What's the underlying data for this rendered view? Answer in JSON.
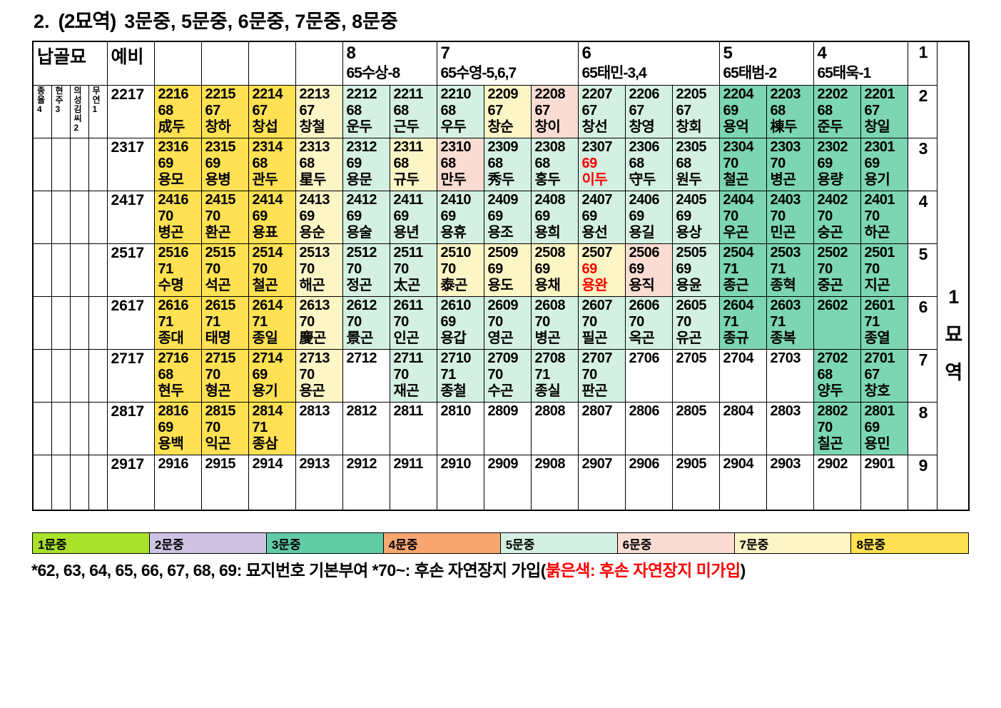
{
  "title": {
    "prefix": "2.",
    "area": "(2묘역)",
    "rest": "3문중, 5문중, 6문중, 7문중, 8문중"
  },
  "colors": {
    "y8": "#FFE153",
    "y7": "#FCF5C5",
    "m5": "#D4F0E3",
    "p6": "#FBDCD2",
    "g3": "#7CD6B3",
    "w": "#FFFFFF"
  },
  "table": {
    "header": {
      "nabgolmyo": "납골묘",
      "yebi": "예비",
      "blank_columns": 4,
      "groups": [
        {
          "num": "8",
          "label": "65수상-8",
          "span": 2
        },
        {
          "num": "7",
          "label": "65수영-5,6,7",
          "span": 3
        },
        {
          "num": "6",
          "label": "65태민-3,4",
          "span": 3
        },
        {
          "num": "5",
          "label": "65태범-2",
          "span": 2
        },
        {
          "num": "4",
          "label": "65태욱-1",
          "span": 2
        }
      ],
      "corner_row_label": "1"
    },
    "left_columns": [
      "종율4",
      "현주3",
      "의성김씨2",
      "무연1"
    ],
    "right_label": "1묘역",
    "rows": [
      {
        "reserve": "2217",
        "label": "2",
        "cells": [
          {
            "id": "2216",
            "sub": "68",
            "name": "成두",
            "f": "y8"
          },
          {
            "id": "2215",
            "sub": "67",
            "name": "창하",
            "f": "y8"
          },
          {
            "id": "2214",
            "sub": "67",
            "name": "창섭",
            "f": "y8"
          },
          {
            "id": "2213",
            "sub": "67",
            "name": "창철",
            "f": "y7"
          },
          {
            "id": "2212",
            "sub": "68",
            "name": "운두",
            "f": "m5"
          },
          {
            "id": "2211",
            "sub": "68",
            "name": "근두",
            "f": "m5"
          },
          {
            "id": "2210",
            "sub": "68",
            "name": "우두",
            "f": "m5"
          },
          {
            "id": "2209",
            "sub": "67",
            "name": "창순",
            "f": "y7"
          },
          {
            "id": "2208",
            "sub": "67",
            "name": "창이",
            "f": "p6"
          },
          {
            "id": "2207",
            "sub": "67",
            "name": "창선",
            "f": "m5"
          },
          {
            "id": "2206",
            "sub": "67",
            "name": "창영",
            "f": "m5"
          },
          {
            "id": "2205",
            "sub": "67",
            "name": "창회",
            "f": "m5"
          },
          {
            "id": "2204",
            "sub": "69",
            "name": "용억",
            "f": "g3"
          },
          {
            "id": "2203",
            "sub": "68",
            "name": "棟두",
            "f": "g3"
          },
          {
            "id": "2202",
            "sub": "68",
            "name": "준두",
            "f": "g3"
          },
          {
            "id": "2201",
            "sub": "67",
            "name": "창일",
            "f": "g3"
          }
        ]
      },
      {
        "reserve": "2317",
        "label": "3",
        "cells": [
          {
            "id": "2316",
            "sub": "69",
            "name": "용모",
            "f": "y8"
          },
          {
            "id": "2315",
            "sub": "69",
            "name": "용병",
            "f": "y8"
          },
          {
            "id": "2314",
            "sub": "68",
            "name": "관두",
            "f": "y8"
          },
          {
            "id": "2313",
            "sub": "68",
            "name": "星두",
            "f": "y7"
          },
          {
            "id": "2312",
            "sub": "69",
            "name": "용문",
            "f": "m5"
          },
          {
            "id": "2311",
            "sub": "68",
            "name": "규두",
            "f": "y7"
          },
          {
            "id": "2310",
            "sub": "68",
            "name": "만두",
            "f": "p6"
          },
          {
            "id": "2309",
            "sub": "68",
            "name": "秀두",
            "f": "m5"
          },
          {
            "id": "2308",
            "sub": "68",
            "name": "홍두",
            "f": "m5"
          },
          {
            "id": "2307",
            "sub": "69",
            "name": "이두",
            "f": "m5",
            "red": true
          },
          {
            "id": "2306",
            "sub": "68",
            "name": "守두",
            "f": "m5"
          },
          {
            "id": "2305",
            "sub": "68",
            "name": "원두",
            "f": "m5"
          },
          {
            "id": "2304",
            "sub": "70",
            "name": "철곤",
            "f": "g3"
          },
          {
            "id": "2303",
            "sub": "70",
            "name": "병곤",
            "f": "g3"
          },
          {
            "id": "2302",
            "sub": "69",
            "name": "용량",
            "f": "g3"
          },
          {
            "id": "2301",
            "sub": "69",
            "name": "용기",
            "f": "g3"
          }
        ]
      },
      {
        "reserve": "2417",
        "label": "4",
        "cells": [
          {
            "id": "2416",
            "sub": "70",
            "name": "병곤",
            "f": "y8"
          },
          {
            "id": "2415",
            "sub": "70",
            "name": "환곤",
            "f": "y8"
          },
          {
            "id": "2414",
            "sub": "69",
            "name": "용표",
            "f": "y8"
          },
          {
            "id": "2413",
            "sub": "69",
            "name": "용순",
            "f": "y7"
          },
          {
            "id": "2412",
            "sub": "69",
            "name": "용술",
            "f": "m5"
          },
          {
            "id": "2411",
            "sub": "69",
            "name": "용년",
            "f": "m5"
          },
          {
            "id": "2410",
            "sub": "69",
            "name": "용휴",
            "f": "m5"
          },
          {
            "id": "2409",
            "sub": "69",
            "name": "용조",
            "f": "m5"
          },
          {
            "id": "2408",
            "sub": "69",
            "name": "용희",
            "f": "m5"
          },
          {
            "id": "2407",
            "sub": "69",
            "name": "용선",
            "f": "m5"
          },
          {
            "id": "2406",
            "sub": "69",
            "name": "용길",
            "f": "m5"
          },
          {
            "id": "2405",
            "sub": "69",
            "name": "용상",
            "f": "m5"
          },
          {
            "id": "2404",
            "sub": "70",
            "name": "우곤",
            "f": "g3"
          },
          {
            "id": "2403",
            "sub": "70",
            "name": "민곤",
            "f": "g3"
          },
          {
            "id": "2402",
            "sub": "70",
            "name": "숭곤",
            "f": "g3"
          },
          {
            "id": "2401",
            "sub": "70",
            "name": "하곤",
            "f": "g3"
          }
        ]
      },
      {
        "reserve": "2517",
        "label": "5",
        "cells": [
          {
            "id": "2516",
            "sub": "71",
            "name": "수명",
            "f": "y8"
          },
          {
            "id": "2515",
            "sub": "70",
            "name": "석곤",
            "f": "y8"
          },
          {
            "id": "2514",
            "sub": "70",
            "name": "철곤",
            "f": "y8"
          },
          {
            "id": "2513",
            "sub": "70",
            "name": "해곤",
            "f": "y7"
          },
          {
            "id": "2512",
            "sub": "70",
            "name": "정곤",
            "f": "m5"
          },
          {
            "id": "2511",
            "sub": "70",
            "name": "太곤",
            "f": "m5"
          },
          {
            "id": "2510",
            "sub": "70",
            "name": "泰곤",
            "f": "y7"
          },
          {
            "id": "2509",
            "sub": "69",
            "name": "용도",
            "f": "y7"
          },
          {
            "id": "2508",
            "sub": "69",
            "name": "용채",
            "f": "y7"
          },
          {
            "id": "2507",
            "sub": "69",
            "name": "용완",
            "f": "y7",
            "red": true
          },
          {
            "id": "2506",
            "sub": "69",
            "name": "용직",
            "f": "p6"
          },
          {
            "id": "2505",
            "sub": "69",
            "name": "용윤",
            "f": "m5"
          },
          {
            "id": "2504",
            "sub": "71",
            "name": "종근",
            "f": "g3"
          },
          {
            "id": "2503",
            "sub": "71",
            "name": "종혁",
            "f": "g3"
          },
          {
            "id": "2502",
            "sub": "70",
            "name": "중곤",
            "f": "g3"
          },
          {
            "id": "2501",
            "sub": "70",
            "name": "지곤",
            "f": "g3"
          }
        ]
      },
      {
        "reserve": "2617",
        "label": "6",
        "cells": [
          {
            "id": "2616",
            "sub": "71",
            "name": "종대",
            "f": "y8"
          },
          {
            "id": "2615",
            "sub": "71",
            "name": "태명",
            "f": "y8"
          },
          {
            "id": "2614",
            "sub": "71",
            "name": "종일",
            "f": "y8"
          },
          {
            "id": "2613",
            "sub": "70",
            "name": "慶곤",
            "f": "y7"
          },
          {
            "id": "2612",
            "sub": "70",
            "name": "景곤",
            "f": "m5"
          },
          {
            "id": "2611",
            "sub": "70",
            "name": "인곤",
            "f": "m5"
          },
          {
            "id": "2610",
            "sub": "69",
            "name": "용갑",
            "f": "m5"
          },
          {
            "id": "2609",
            "sub": "70",
            "name": "영곤",
            "f": "m5"
          },
          {
            "id": "2608",
            "sub": "70",
            "name": "병곤",
            "f": "m5"
          },
          {
            "id": "2607",
            "sub": "70",
            "name": "필곤",
            "f": "m5"
          },
          {
            "id": "2606",
            "sub": "70",
            "name": "옥곤",
            "f": "m5"
          },
          {
            "id": "2605",
            "sub": "70",
            "name": "유곤",
            "f": "m5"
          },
          {
            "id": "2604",
            "sub": "71",
            "name": "종규",
            "f": "g3"
          },
          {
            "id": "2603",
            "sub": "71",
            "name": "종복",
            "f": "g3"
          },
          {
            "id": "2602",
            "sub": "",
            "name": "",
            "f": "g3"
          },
          {
            "id": "2601",
            "sub": "71",
            "name": "종열",
            "f": "g3"
          }
        ]
      },
      {
        "reserve": "2717",
        "label": "7",
        "cells": [
          {
            "id": "2716",
            "sub": "68",
            "name": "현두",
            "f": "y8"
          },
          {
            "id": "2715",
            "sub": "70",
            "name": "형곤",
            "f": "y8"
          },
          {
            "id": "2714",
            "sub": "69",
            "name": "용기",
            "f": "y8"
          },
          {
            "id": "2713",
            "sub": "70",
            "name": "용곤",
            "f": "y7"
          },
          {
            "id": "2712",
            "sub": "",
            "name": "",
            "f": "w"
          },
          {
            "id": "2711",
            "sub": "70",
            "name": "재곤",
            "f": "m5"
          },
          {
            "id": "2710",
            "sub": "71",
            "name": "종철",
            "f": "m5"
          },
          {
            "id": "2709",
            "sub": "70",
            "name": "수곤",
            "f": "m5"
          },
          {
            "id": "2708",
            "sub": "71",
            "name": "종실",
            "f": "m5"
          },
          {
            "id": "2707",
            "sub": "70",
            "name": "판곤",
            "f": "m5"
          },
          {
            "id": "2706",
            "sub": "",
            "name": "",
            "f": "w"
          },
          {
            "id": "2705",
            "sub": "",
            "name": "",
            "f": "w"
          },
          {
            "id": "2704",
            "sub": "",
            "name": "",
            "f": "w"
          },
          {
            "id": "2703",
            "sub": "",
            "name": "",
            "f": "w"
          },
          {
            "id": "2702",
            "sub": "68",
            "name": "양두",
            "f": "g3"
          },
          {
            "id": "2701",
            "sub": "67",
            "name": "창호",
            "f": "g3"
          }
        ]
      },
      {
        "reserve": "2817",
        "label": "8",
        "cells": [
          {
            "id": "2816",
            "sub": "69",
            "name": "용백",
            "f": "y8"
          },
          {
            "id": "2815",
            "sub": "70",
            "name": "익곤",
            "f": "y8"
          },
          {
            "id": "2814",
            "sub": "71",
            "name": "종삼",
            "f": "y8"
          },
          {
            "id": "2813",
            "sub": "",
            "name": "",
            "f": "w"
          },
          {
            "id": "2812",
            "sub": "",
            "name": "",
            "f": "w"
          },
          {
            "id": "2811",
            "sub": "",
            "name": "",
            "f": "w"
          },
          {
            "id": "2810",
            "sub": "",
            "name": "",
            "f": "w"
          },
          {
            "id": "2809",
            "sub": "",
            "name": "",
            "f": "w"
          },
          {
            "id": "2808",
            "sub": "",
            "name": "",
            "f": "w"
          },
          {
            "id": "2807",
            "sub": "",
            "name": "",
            "f": "w"
          },
          {
            "id": "2806",
            "sub": "",
            "name": "",
            "f": "w"
          },
          {
            "id": "2805",
            "sub": "",
            "name": "",
            "f": "w"
          },
          {
            "id": "2804",
            "sub": "",
            "name": "",
            "f": "w"
          },
          {
            "id": "2803",
            "sub": "",
            "name": "",
            "f": "w"
          },
          {
            "id": "2802",
            "sub": "70",
            "name": "칠곤",
            "f": "g3"
          },
          {
            "id": "2801",
            "sub": "69",
            "name": "용민",
            "f": "g3"
          }
        ]
      },
      {
        "reserve": "2917",
        "label": "9",
        "cells": [
          {
            "id": "2916",
            "sub": "",
            "name": "",
            "f": "w"
          },
          {
            "id": "2915",
            "sub": "",
            "name": "",
            "f": "w"
          },
          {
            "id": "2914",
            "sub": "",
            "name": "",
            "f": "w"
          },
          {
            "id": "2913",
            "sub": "",
            "name": "",
            "f": "w"
          },
          {
            "id": "2912",
            "sub": "",
            "name": "",
            "f": "w"
          },
          {
            "id": "2911",
            "sub": "",
            "name": "",
            "f": "w"
          },
          {
            "id": "2910",
            "sub": "",
            "name": "",
            "f": "w"
          },
          {
            "id": "2909",
            "sub": "",
            "name": "",
            "f": "w"
          },
          {
            "id": "2908",
            "sub": "",
            "name": "",
            "f": "w"
          },
          {
            "id": "2907",
            "sub": "",
            "name": "",
            "f": "w"
          },
          {
            "id": "2906",
            "sub": "",
            "name": "",
            "f": "w"
          },
          {
            "id": "2905",
            "sub": "",
            "name": "",
            "f": "w"
          },
          {
            "id": "2904",
            "sub": "",
            "name": "",
            "f": "w"
          },
          {
            "id": "2903",
            "sub": "",
            "name": "",
            "f": "w"
          },
          {
            "id": "2902",
            "sub": "",
            "name": "",
            "f": "w"
          },
          {
            "id": "2901",
            "sub": "",
            "name": "",
            "f": "w"
          }
        ]
      }
    ]
  },
  "legend": [
    {
      "label": "1문중",
      "color": "#A9E22B"
    },
    {
      "label": "2문중",
      "color": "#CFC3E3"
    },
    {
      "label": "3문중",
      "color": "#62CCA6"
    },
    {
      "label": "4문중",
      "color": "#F9A771"
    },
    {
      "label": "5문중",
      "color": "#D4F0E3"
    },
    {
      "label": "6문중",
      "color": "#FBDCD2"
    },
    {
      "label": "7문중",
      "color": "#FCF5C5"
    },
    {
      "label": "8문중",
      "color": "#FFE153"
    }
  ],
  "footnote": {
    "black1": "*62, 63, 64, 65, 66, 67, 68, 69: 묘지번호 기본부여 *70~: 후손 자연장지 가입(",
    "red": "붉은색: 후손 자연장지 미가입",
    "black2": ")"
  }
}
